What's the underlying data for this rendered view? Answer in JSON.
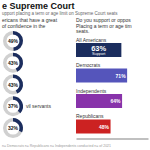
{
  "chart_data": [
    {
      "type": "donut",
      "title": "e Supreme Court",
      "subtitle": "upport placing a term or age limit on Supreme Court seats",
      "annotations": [
        "ericans that have a great",
        "of confidence in the",
        "n= Democrats  n= Republicans  n= Independents conducted n= of 2021"
      ],
      "categories": [
        null,
        null,
        null,
        "vil servants",
        null
      ],
      "values": [
        49,
        43,
        43,
        37,
        32
      ],
      "value_labels": [
        "49%",
        "43%",
        "43%",
        "37%",
        "32%"
      ],
      "data_labels": true,
      "color": "#1b2d5e"
    },
    {
      "type": "bar",
      "orientation": "horizontal",
      "annotations": [
        "Do you support or oppos",
        "Placing a term or age tim",
        "seats.",
        "Support"
      ],
      "categories": [
        "All Americans",
        "Democrats",
        "Independents",
        "Republicans"
      ],
      "values": [
        63,
        71,
        64,
        48
      ],
      "value_labels": [
        "63%",
        "71%",
        "64%",
        "48%"
      ],
      "data_labels": true,
      "colors": [
        "#1b2d5e",
        "#5555bb",
        "#8833aa",
        "#cc2222"
      ],
      "xlim": [
        0,
        100
      ],
      "tick_labels": false
    }
  ]
}
